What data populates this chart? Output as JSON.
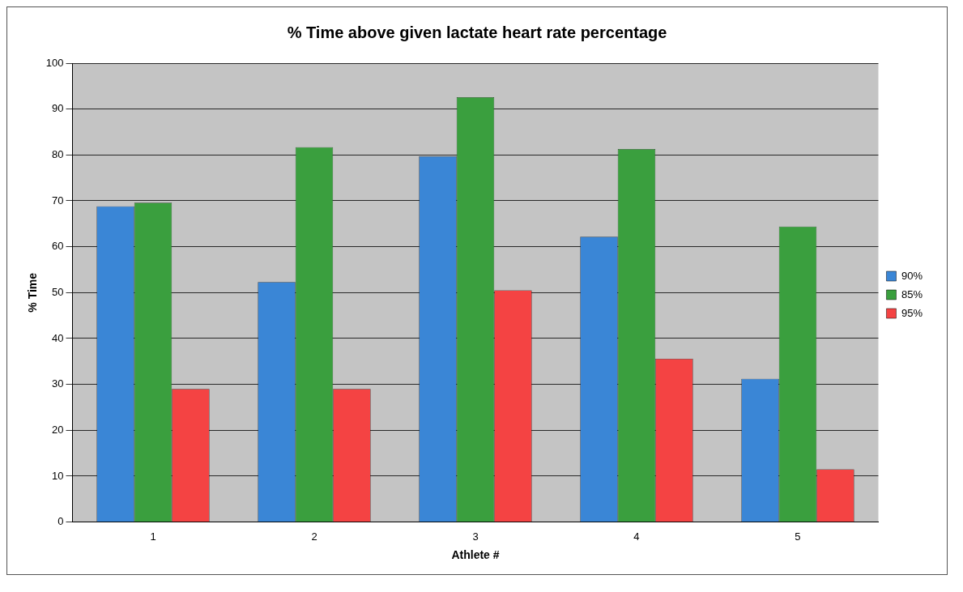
{
  "chart_data": {
    "type": "bar",
    "title": "% Time above given lactate heart rate percentage",
    "xlabel": "Athlete #",
    "ylabel": "% Time",
    "categories": [
      "1",
      "2",
      "3",
      "4",
      "5"
    ],
    "series": [
      {
        "name": "90%",
        "color": "#3a86d6",
        "values": [
          68.8,
          52.3,
          79.7,
          62.2,
          31.2
        ]
      },
      {
        "name": "85%",
        "color": "#3a9f3e",
        "values": [
          69.6,
          81.7,
          92.6,
          81.3,
          64.4
        ]
      },
      {
        "name": "95%",
        "color": "#f44343",
        "values": [
          29,
          29,
          50.5,
          35.6,
          11.5
        ]
      }
    ],
    "ylim": [
      0,
      100
    ],
    "yticks": [
      0,
      10,
      20,
      30,
      40,
      50,
      60,
      70,
      80,
      90,
      100
    ],
    "grid": "y",
    "legend": "right"
  }
}
